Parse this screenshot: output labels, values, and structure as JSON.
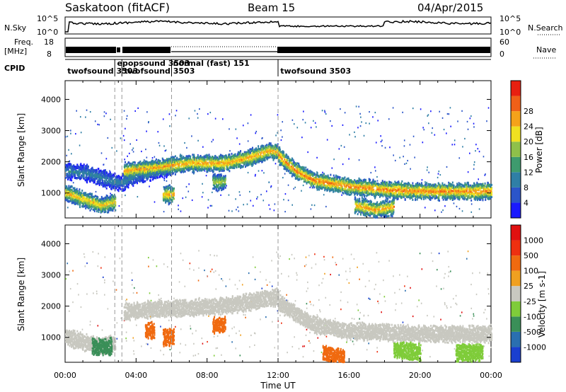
{
  "header": {
    "title": "Saskatoon (fitACF)",
    "beam": "Beam 15",
    "date": "04/Apr/2015"
  },
  "nsky_panel": {
    "label": "N.Sky",
    "right_label": "N.Search",
    "y_ticks_left": [
      "10^5",
      "10^0"
    ],
    "y_ticks_right": [
      "10^5",
      "10^0"
    ]
  },
  "freq_panel": {
    "label_line1": "Freq.",
    "label_line2": "[MHz]",
    "right_label": "Nave",
    "y_ticks_left": [
      "18",
      "8"
    ],
    "y_ticks_right": [
      "60",
      "0"
    ]
  },
  "cpid_panel": {
    "label": "CPID",
    "entries": [
      {
        "hour": 0.05,
        "text": "twofsound 3503",
        "row": 1
      },
      {
        "hour": 2.85,
        "text": "epopsound 3503",
        "row": 0
      },
      {
        "hour": 3.25,
        "text": "twofsound 3503",
        "row": 1
      },
      {
        "hour": 6.0,
        "text": "normal (fast) 151",
        "row": 0
      },
      {
        "hour": 12.05,
        "text": "twofsound 3503",
        "row": 1
      }
    ],
    "dividers": [
      2.8,
      3.2,
      6.0,
      12.0
    ]
  },
  "chart_data": [
    {
      "type": "heatmap",
      "panel": "power",
      "ylabel": "Slant Range [km]",
      "ylim": [
        200,
        4600
      ],
      "y_ticks": [
        1000,
        2000,
        3000,
        4000
      ],
      "xlim": [
        0,
        24
      ],
      "colorbar": {
        "label": "Power [dB]",
        "ticks": [
          "4",
          "8",
          "12",
          "16",
          "20",
          "24",
          "28"
        ],
        "colors": [
          "#1a1aff",
          "#2b55c9",
          "#2f7fa6",
          "#3e9b6e",
          "#8fc04a",
          "#f0e020",
          "#f5a21a",
          "#f06018",
          "#e82010"
        ]
      },
      "bands": [
        {
          "x": [
            0,
            1,
            2,
            2.8
          ],
          "y": [
            1000,
            800,
            600,
            700
          ],
          "power": 22
        },
        {
          "x": [
            0,
            1.5,
            3,
            4.5,
            6
          ],
          "y": [
            1700,
            1600,
            1300,
            1650,
            1800
          ],
          "power": 10
        },
        {
          "x": [
            3.3,
            5,
            7,
            9,
            10.5,
            11.5,
            12
          ],
          "y": [
            1700,
            1800,
            1950,
            1950,
            2150,
            2350,
            2300
          ],
          "power": 24
        },
        {
          "x": [
            12,
            13,
            14,
            16,
            18,
            20,
            22,
            24
          ],
          "y": [
            2200,
            1700,
            1400,
            1200,
            1100,
            1050,
            1050,
            1050
          ],
          "power": 26
        },
        {
          "x": [
            5.5,
            6.1
          ],
          "y": [
            950,
            950
          ],
          "power": 24
        },
        {
          "x": [
            8.3,
            9.0
          ],
          "y": [
            1350,
            1350
          ],
          "power": 18
        },
        {
          "x": [
            16.3,
            17.5,
            18.5
          ],
          "y": [
            600,
            450,
            550
          ],
          "power": 24
        }
      ]
    },
    {
      "type": "heatmap",
      "panel": "velocity",
      "ylabel": "Slant Range [km]",
      "xlabel": "Time UT",
      "ylim": [
        200,
        4600
      ],
      "y_ticks": [
        1000,
        2000,
        3000,
        4000
      ],
      "xlim": [
        0,
        24
      ],
      "x_ticks": [
        "00:00",
        "04:00",
        "08:00",
        "12:00",
        "16:00",
        "20:00",
        "00:00"
      ],
      "colorbar": {
        "label": "Velocity [m s-1]",
        "ticks": [
          "1000",
          "500",
          "100",
          "25",
          "-25",
          "-100",
          "-500",
          "-1000"
        ],
        "colors": [
          "#1a3fcf",
          "#2a6fb0",
          "#3a8f58",
          "#7fcc3a",
          "#c8c8c0",
          "#f0a020",
          "#f06a10",
          "#ee3010",
          "#e01010"
        ]
      },
      "bands": [
        {
          "x": [
            0,
            1,
            2,
            2.8
          ],
          "y": [
            1000,
            850,
            700,
            800
          ],
          "velocity": 0
        },
        {
          "x": [
            3.3,
            5,
            7,
            9,
            11,
            12
          ],
          "y": [
            1800,
            1900,
            1950,
            2000,
            2200,
            2300
          ],
          "velocity": 0
        },
        {
          "x": [
            12,
            14,
            16,
            18,
            20,
            22,
            24
          ],
          "y": [
            2100,
            1400,
            1200,
            1150,
            1100,
            1100,
            1100
          ],
          "velocity": 0
        },
        {
          "x": [
            1.5,
            2.6
          ],
          "y": [
            700,
            700
          ],
          "velocity": 300
        },
        {
          "x": [
            4.5,
            5.0
          ],
          "y": [
            1200,
            1200
          ],
          "velocity": -300
        },
        {
          "x": [
            5.5,
            6.1
          ],
          "y": [
            1000,
            1000
          ],
          "velocity": -300
        },
        {
          "x": [
            8.3,
            9.0
          ],
          "y": [
            1400,
            1400
          ],
          "velocity": -300
        },
        {
          "x": [
            14.5,
            15.7
          ],
          "y": [
            500,
            350
          ],
          "velocity": -150
        },
        {
          "x": [
            18.5,
            20
          ],
          "y": [
            600,
            500
          ],
          "velocity": 50
        },
        {
          "x": [
            22,
            23.5
          ],
          "y": [
            500,
            500
          ],
          "velocity": 50
        }
      ]
    }
  ]
}
